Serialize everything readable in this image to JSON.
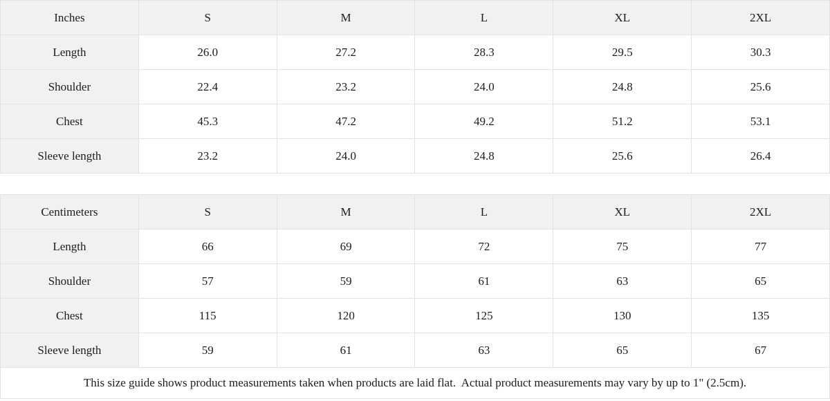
{
  "chart_data": [
    {
      "type": "table",
      "title": "Inches",
      "columns": [
        "Inches",
        "S",
        "M",
        "L",
        "XL",
        "2XL"
      ],
      "rows": [
        [
          "Length",
          "26.0",
          "27.2",
          "28.3",
          "29.5",
          "30.3"
        ],
        [
          "Shoulder",
          "22.4",
          "23.2",
          "24.0",
          "24.8",
          "25.6"
        ],
        [
          "Chest",
          "45.3",
          "47.2",
          "49.2",
          "51.2",
          "53.1"
        ],
        [
          "Sleeve length",
          "23.2",
          "24.0",
          "24.8",
          "25.6",
          "26.4"
        ]
      ]
    },
    {
      "type": "table",
      "title": "Centimeters",
      "columns": [
        "Centimeters",
        "S",
        "M",
        "L",
        "XL",
        "2XL"
      ],
      "rows": [
        [
          "Length",
          "66",
          "69",
          "72",
          "75",
          "77"
        ],
        [
          "Shoulder",
          "57",
          "59",
          "61",
          "63",
          "65"
        ],
        [
          "Chest",
          "115",
          "120",
          "125",
          "130",
          "135"
        ],
        [
          "Sleeve length",
          "59",
          "61",
          "63",
          "65",
          "67"
        ]
      ]
    }
  ],
  "footer": {
    "note": "This size guide shows product measurements taken when products are laid flat.  Actual product measurements may vary by up to 1\" (2.5cm)."
  },
  "colors": {
    "header_background": "#f1f1f1",
    "cell_background": "#ffffff",
    "border": "#e2e2e2",
    "text": "#1c1c1c"
  }
}
